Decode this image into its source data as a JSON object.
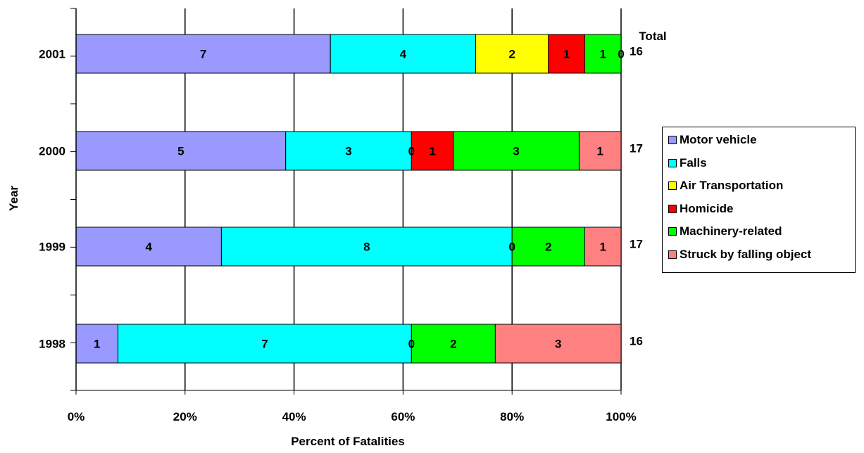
{
  "chart_data": {
    "type": "bar",
    "orientation": "horizontal",
    "stacked": "percent",
    "xlabel": "Percent of Fatalities",
    "ylabel": "Year",
    "xlim": [
      0,
      100
    ],
    "x_ticks": [
      "0%",
      "20%",
      "40%",
      "60%",
      "80%",
      "100%"
    ],
    "categories": [
      "2001",
      "2000",
      "1999",
      "1998"
    ],
    "series": [
      {
        "name": "Motor vehicle",
        "color": "#9999FF",
        "values": [
          7,
          5,
          4,
          1
        ],
        "labels": [
          "7",
          "5",
          "4",
          "1"
        ]
      },
      {
        "name": "Falls",
        "color": "#00FFFF",
        "values": [
          4,
          3,
          8,
          7
        ],
        "labels": [
          "4",
          "3",
          "8",
          "7"
        ]
      },
      {
        "name": "Air Transportation",
        "color": "#FFFF00",
        "values": [
          2,
          0,
          0,
          0
        ],
        "labels": [
          "2",
          "0",
          "0",
          "0"
        ]
      },
      {
        "name": "Homicide",
        "color": "#FF0000",
        "values": [
          1,
          1,
          0,
          0
        ],
        "labels": [
          "1",
          "1",
          "",
          ""
        ]
      },
      {
        "name": "Machinery-related",
        "color": "#00FF00",
        "values": [
          1,
          3,
          2,
          2
        ],
        "labels": [
          "1",
          "3",
          "2",
          "2"
        ]
      },
      {
        "name": "Struck by falling object",
        "color": "#FF8080",
        "values": [
          0,
          1,
          1,
          3
        ],
        "labels": [
          "0",
          "1",
          "1",
          "3"
        ]
      }
    ],
    "totals_header": "Total",
    "totals": [
      "16",
      "17",
      "17",
      "16"
    ],
    "grid": "vertical",
    "legend_position": "right"
  }
}
